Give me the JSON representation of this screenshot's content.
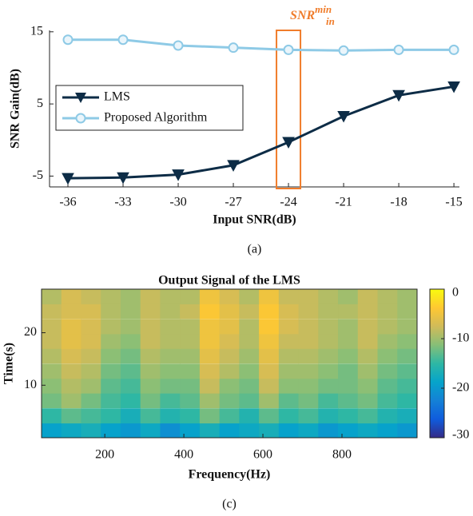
{
  "chart_data": [
    {
      "type": "line",
      "xlabel": "Input SNR(dB)",
      "ylabel": "SNR Gain(dB)",
      "caption": "(a)",
      "x": [
        -36,
        -33,
        -30,
        -27,
        -24,
        -21,
        -18,
        -15
      ],
      "series": [
        {
          "name": "LMS",
          "color": "#0d2c46",
          "marker": "v",
          "values": [
            -5.3,
            -5.2,
            -4.8,
            -3.5,
            -0.3,
            3.3,
            6.2,
            7.4
          ]
        },
        {
          "name": "Proposed Algorithm",
          "color": "#8ecae6",
          "marker": "o",
          "values": [
            13.9,
            13.9,
            13.1,
            12.8,
            12.5,
            12.4,
            12.5,
            12.5
          ]
        }
      ],
      "xlim": [
        -37,
        -14.7
      ],
      "ylim": [
        -6.5,
        15.2
      ],
      "xticks": [
        -36,
        -33,
        -30,
        -27,
        -24,
        -21,
        -18,
        -15
      ],
      "yticks": [
        -5,
        5,
        15
      ],
      "legend": "center left",
      "annotation": {
        "text": "SNR",
        "sup": "min",
        "sub": "in",
        "x": -24,
        "color": "#f07c2a"
      }
    },
    {
      "type": "heatmap",
      "title": "Output Signal of the LMS",
      "xlabel": "Frequency(Hz)",
      "ylabel": "Time(s)",
      "caption": "(c)",
      "x": [
        65,
        115,
        165,
        215,
        265,
        315,
        365,
        415,
        465,
        515,
        565,
        615,
        665,
        715,
        765,
        815,
        865,
        915,
        965
      ],
      "y": [
        1.4,
        4.2,
        7.1,
        9.9,
        12.7,
        15.6,
        18.4,
        21.2,
        24.1,
        26.9
      ],
      "values": [
        [
          -19,
          -18,
          -17,
          -19,
          -20,
          -18,
          -21,
          -19,
          -17,
          -19,
          -18,
          -17,
          -19,
          -18,
          -20,
          -19,
          -18,
          -19,
          -20
        ],
        [
          -15,
          -13,
          -14,
          -15,
          -17,
          -14,
          -16,
          -15,
          -12,
          -14,
          -16,
          -13,
          -15,
          -14,
          -16,
          -15,
          -14,
          -16,
          -17
        ],
        [
          -12,
          -10,
          -12,
          -14,
          -15,
          -12,
          -14,
          -13,
          -10,
          -12,
          -13,
          -10,
          -13,
          -12,
          -14,
          -13,
          -12,
          -14,
          -15
        ],
        [
          -11,
          -9,
          -10,
          -13,
          -14,
          -11,
          -12,
          -12,
          -8,
          -11,
          -12,
          -8,
          -11,
          -11,
          -12,
          -12,
          -11,
          -13,
          -14
        ],
        [
          -10,
          -8,
          -9,
          -12,
          -13,
          -10,
          -11,
          -11,
          -7,
          -9,
          -11,
          -7,
          -10,
          -10,
          -11,
          -12,
          -10,
          -12,
          -13
        ],
        [
          -9,
          -7,
          -8,
          -11,
          -12,
          -9,
          -10,
          -10,
          -6,
          -8,
          -10,
          -6,
          -9,
          -9,
          -10,
          -11,
          -9,
          -11,
          -12
        ],
        [
          -8,
          -6,
          -7,
          -10,
          -11,
          -8,
          -9,
          -9,
          -5,
          -7,
          -9,
          -5,
          -8,
          -8,
          -9,
          -10,
          -8,
          -10,
          -11
        ],
        [
          -8,
          -6,
          -7,
          -9,
          -10,
          -8,
          -9,
          -9,
          -5,
          -6,
          -9,
          -4,
          -7,
          -8,
          -9,
          -10,
          -8,
          -9,
          -10
        ],
        [
          -8,
          -7,
          -7,
          -9,
          -10,
          -8,
          -9,
          -8,
          -4,
          -6,
          -8,
          -4,
          -7,
          -8,
          -9,
          -9,
          -8,
          -9,
          -10
        ],
        [
          -9,
          -7,
          -8,
          -9,
          -10,
          -8,
          -9,
          -9,
          -5,
          -7,
          -9,
          -5,
          -8,
          -8,
          -9,
          -10,
          -8,
          -9,
          -10
        ]
      ],
      "xlim": [
        40,
        990
      ],
      "ylim": [
        0,
        28.3
      ],
      "xticks": [
        200,
        400,
        600,
        800
      ],
      "yticks": [
        10,
        20
      ],
      "clim": [
        -30,
        0
      ],
      "cticks": [
        0,
        -10,
        -20,
        -30
      ],
      "colorscale": [
        "#352a87",
        "#0f5cdd",
        "#1481d6",
        "#06a4ca",
        "#2eb7a4",
        "#87bf77",
        "#d1bb59",
        "#fec832",
        "#f9fb0e"
      ]
    }
  ]
}
